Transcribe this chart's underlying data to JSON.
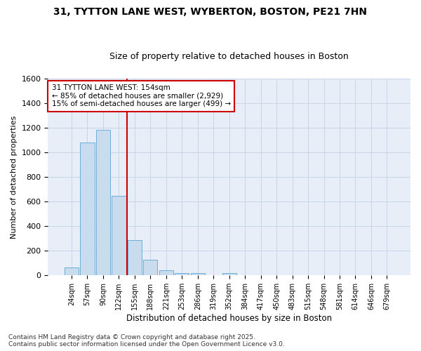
{
  "title1": "31, TYTTON LANE WEST, WYBERTON, BOSTON, PE21 7HN",
  "title2": "Size of property relative to detached houses in Boston",
  "xlabel": "Distribution of detached houses by size in Boston",
  "ylabel": "Number of detached properties",
  "bin_labels": [
    "24sqm",
    "57sqm",
    "90sqm",
    "122sqm",
    "155sqm",
    "188sqm",
    "221sqm",
    "253sqm",
    "286sqm",
    "319sqm",
    "352sqm",
    "384sqm",
    "417sqm",
    "450sqm",
    "483sqm",
    "515sqm",
    "548sqm",
    "581sqm",
    "614sqm",
    "646sqm",
    "679sqm"
  ],
  "bar_heights": [
    65,
    1080,
    1180,
    645,
    285,
    130,
    40,
    20,
    20,
    0,
    20,
    0,
    0,
    0,
    0,
    0,
    0,
    0,
    0,
    0,
    0
  ],
  "bar_color": "#c9dced",
  "bar_edge_color": "#6aaed6",
  "vline_x_idx": 4,
  "vline_color": "#cc0000",
  "annotation_text": "31 TYTTON LANE WEST: 154sqm\n← 85% of detached houses are smaller (2,929)\n15% of semi-detached houses are larger (499) →",
  "annotation_box_color": "#ffffff",
  "annotation_box_edge": "#cc0000",
  "ylim": [
    0,
    1600
  ],
  "yticks": [
    0,
    200,
    400,
    600,
    800,
    1000,
    1200,
    1400,
    1600
  ],
  "grid_color": "#c8d4e8",
  "bg_color": "#e8eef8",
  "footer_text": "Contains HM Land Registry data © Crown copyright and database right 2025.\nContains public sector information licensed under the Open Government Licence v3.0.",
  "title_fontsize": 10,
  "subtitle_fontsize": 9,
  "annotation_fontsize": 7.5,
  "footer_fontsize": 6.5,
  "ylabel_fontsize": 8,
  "xlabel_fontsize": 8.5
}
